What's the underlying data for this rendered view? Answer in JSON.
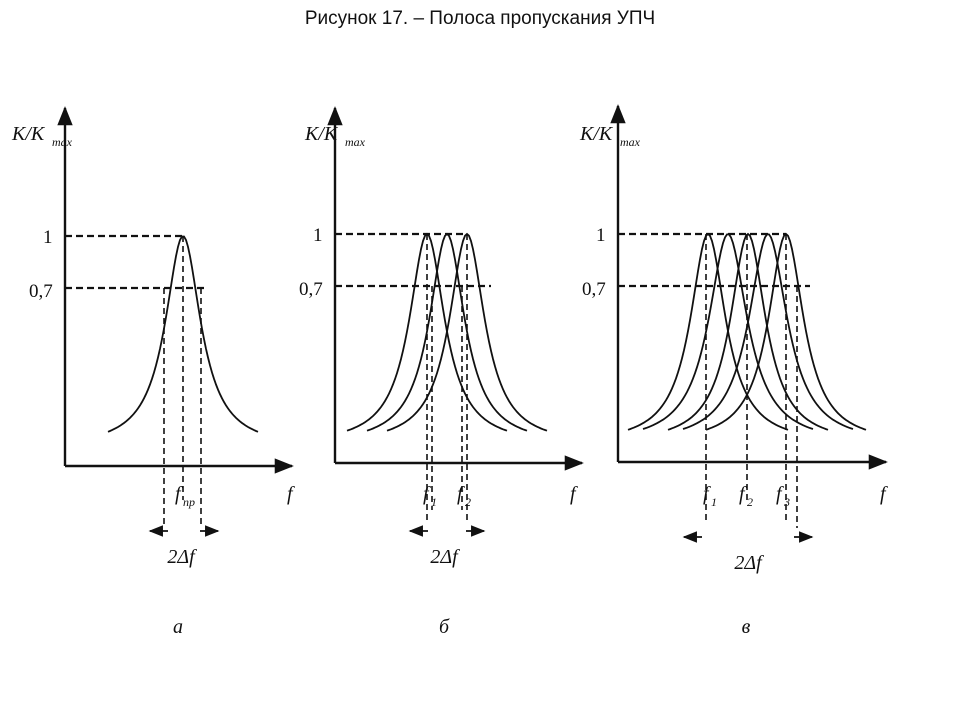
{
  "title": "Рисунок 17.   – Полоса пропускания УПЧ",
  "axis_labels": {
    "y_main": "K/K",
    "y_sub": "max",
    "x": "f",
    "level_1": "1",
    "level_07": "0,7"
  },
  "bandwidth_label": "2Δf",
  "panels": [
    {
      "caption": "а",
      "freq_labels": [
        {
          "main": "f",
          "sub": "пр"
        }
      ],
      "peaks": [
        1.0
      ]
    },
    {
      "caption": "б",
      "freq_labels": [
        {
          "main": "f",
          "sub": "1"
        },
        {
          "main": "f",
          "sub": "2"
        }
      ],
      "peaks": [
        1.0,
        1.0,
        1.0
      ]
    },
    {
      "caption": "в",
      "freq_labels": [
        {
          "main": "f",
          "sub": "1"
        },
        {
          "main": "f",
          "sub": "2"
        },
        {
          "main": "f",
          "sub": "3"
        }
      ],
      "peaks": [
        1.0,
        1.0,
        1.0,
        1.0,
        1.0
      ]
    }
  ]
}
